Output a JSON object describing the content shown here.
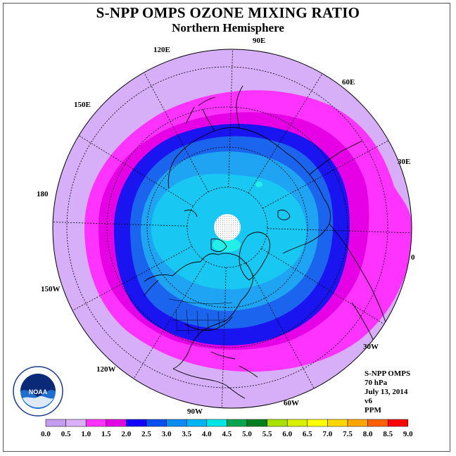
{
  "title": "S-NPP OMPS OZONE MIXING RATIO",
  "subtitle": "Northern Hemisphere",
  "longitude_labels": [
    {
      "label": "90E",
      "deg": 90
    },
    {
      "label": "60E",
      "deg": 60
    },
    {
      "label": "30E",
      "deg": 30
    },
    {
      "label": "0",
      "deg": 0
    },
    {
      "label": "30W",
      "deg": -30
    },
    {
      "label": "60W",
      "deg": -60
    },
    {
      "label": "90W",
      "deg": -90
    },
    {
      "label": "120W",
      "deg": -120
    },
    {
      "label": "150W",
      "deg": -150
    },
    {
      "label": "180",
      "deg": 180
    },
    {
      "label": "150E",
      "deg": 150
    },
    {
      "label": "120E",
      "deg": 120
    }
  ],
  "info": {
    "instrument": "S-NPP OMPS",
    "level": "70 hPa",
    "date": "July 13, 2014",
    "version": "v6",
    "units": "PPM"
  },
  "logo": {
    "icon": "noaa-logo",
    "text": "NOAA",
    "ring_text": "NATIONAL OCEANIC AND ATMOSPHERIC ADMINISTRATION · U.S. DEPARTMENT OF COMMERCE"
  },
  "colorbar": {
    "ticks": [
      "0.0",
      "0.5",
      "1.0",
      "1.5",
      "2.0",
      "2.5",
      "3.0",
      "3.5",
      "4.0",
      "4.5",
      "5.0",
      "5.5",
      "6.0",
      "6.5",
      "7.0",
      "7.5",
      "8.0",
      "8.5",
      "9.0"
    ],
    "colors": [
      "#c49cf0",
      "#dcb0f8",
      "#ff33ff",
      "#e400e4",
      "#1000ff",
      "#0050f0",
      "#0a8cf5",
      "#00b4f5",
      "#00e6e6",
      "#00a650",
      "#00801e",
      "#a8e000",
      "#d8f000",
      "#ffff00",
      "#ffd700",
      "#ffa500",
      "#ff6000",
      "#ff0000",
      "#8b5a2b"
    ]
  },
  "colors": {
    "ring_0_5": "#d7aef8",
    "ring_1_0": "#ff33ff",
    "ring_1_5": "#e600e6",
    "ring_2_0": "#1a14f0",
    "ring_2_5": "#1a64ee",
    "ring_3_0": "#1ea4f2",
    "ring_3_5": "#18c8f2",
    "ring_4_0": "#22f0e8",
    "pole_nodata": "#ffffff"
  }
}
